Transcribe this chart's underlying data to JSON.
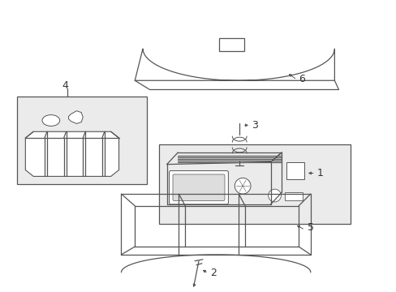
{
  "bg_color": "#ffffff",
  "line_color": "#555555",
  "label_color": "#333333",
  "fig_width": 4.89,
  "fig_height": 3.6,
  "dpi": 100
}
